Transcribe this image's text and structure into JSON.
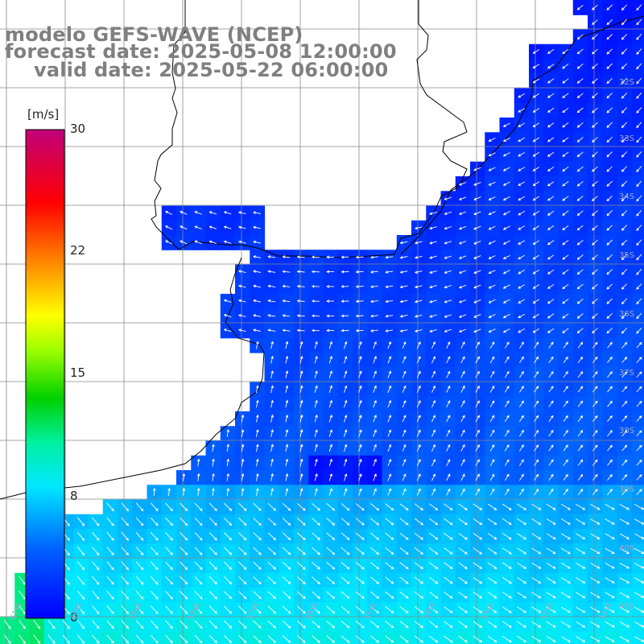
{
  "title": {
    "line1": "modelo GEFS-WAVE (NCEP)",
    "line2": "forecast date: 2025-05-08 12:00:00",
    "line3": "valid date: 2025-05-22 06:00:00"
  },
  "colorbar": {
    "unit": "[m/s]",
    "min": 0,
    "max": 30,
    "ticks": [
      "30",
      "22",
      "15",
      "8",
      "0"
    ]
  },
  "grid_labels": {
    "latitudes": [
      "32S",
      "33S",
      "34S",
      "35S",
      "36S",
      "37S",
      "38S",
      "39S",
      "40S",
      "41S"
    ],
    "longitudes": [
      "61W",
      "60W",
      "59W",
      "58W",
      "57W",
      "56W",
      "55W",
      "54W",
      "53W",
      "52W",
      "51W"
    ]
  },
  "field": {
    "variable": "wind speed and direction",
    "colors": {
      "low": "#0000ff",
      "mid": "#0096ff",
      "cyan": "#00ffff",
      "green": "#00c800",
      "yellow": "#ffff00",
      "red": "#ff0000",
      "magenta": "#c00080"
    }
  }
}
